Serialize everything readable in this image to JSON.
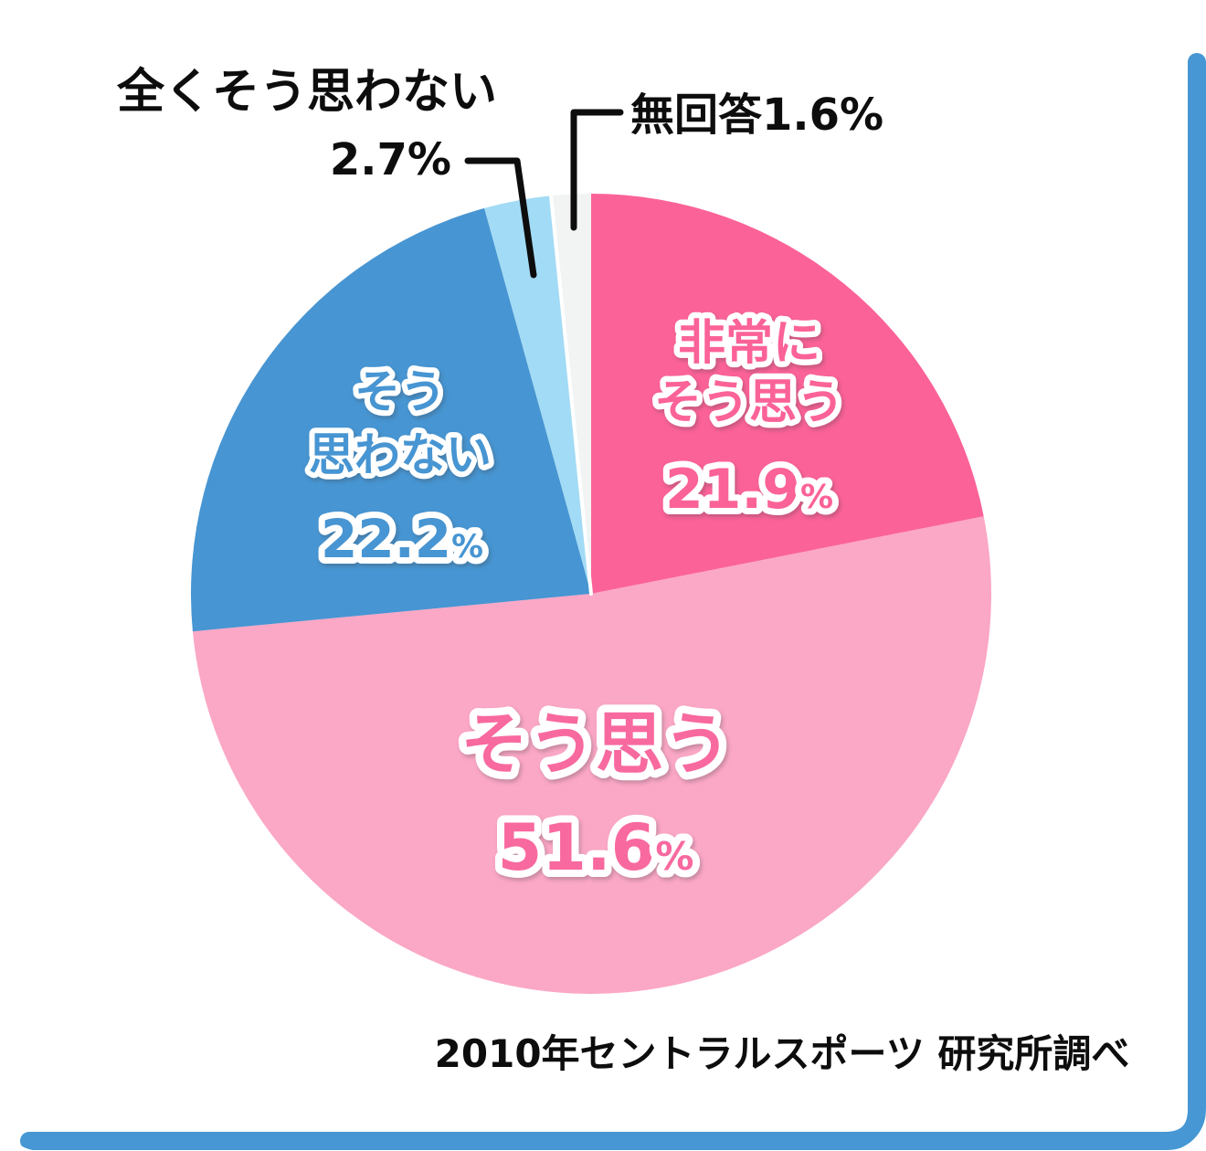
{
  "percent_symbol": "%",
  "frame": {
    "accent_color": "#4697D3"
  },
  "source_note": "2010年セントラルスポーツ 研究所調べ",
  "chart_data": {
    "type": "pie",
    "title": "",
    "start_angle_deg": 0,
    "direction": "clockwise",
    "unit": "%",
    "slices": [
      {
        "id": "strongly-agree",
        "label": "非常にそう思う",
        "label_lines": [
          "非常に",
          "そう思う"
        ],
        "value": 21.9,
        "value_text": "21.9",
        "color": "#FB6298",
        "text_color": "#FB6298",
        "label_placement": "inside"
      },
      {
        "id": "agree",
        "label": "そう思う",
        "label_lines": [
          "そう思う"
        ],
        "value": 51.6,
        "value_text": "51.6",
        "color": "#FBA7C6",
        "text_color": "#F8699F",
        "label_placement": "inside"
      },
      {
        "id": "disagree",
        "label": "そう思わない",
        "label_lines": [
          "そう",
          "思わない"
        ],
        "value": 22.2,
        "value_text": "22.2",
        "color": "#4795D2",
        "text_color": "#4795D2",
        "label_placement": "inside"
      },
      {
        "id": "strongly-disagree",
        "label": "全くそう思わない",
        "value": 2.7,
        "value_text": "2.7%",
        "color": "#A2DBF5",
        "label_color": "#4796D4",
        "label_placement": "outside"
      },
      {
        "id": "no-answer",
        "label": "無回答",
        "value": 1.6,
        "value_text": "1.6%",
        "callout_text": "無回答1.6%",
        "color": "#F2F4F4",
        "label_placement": "outside"
      }
    ]
  }
}
